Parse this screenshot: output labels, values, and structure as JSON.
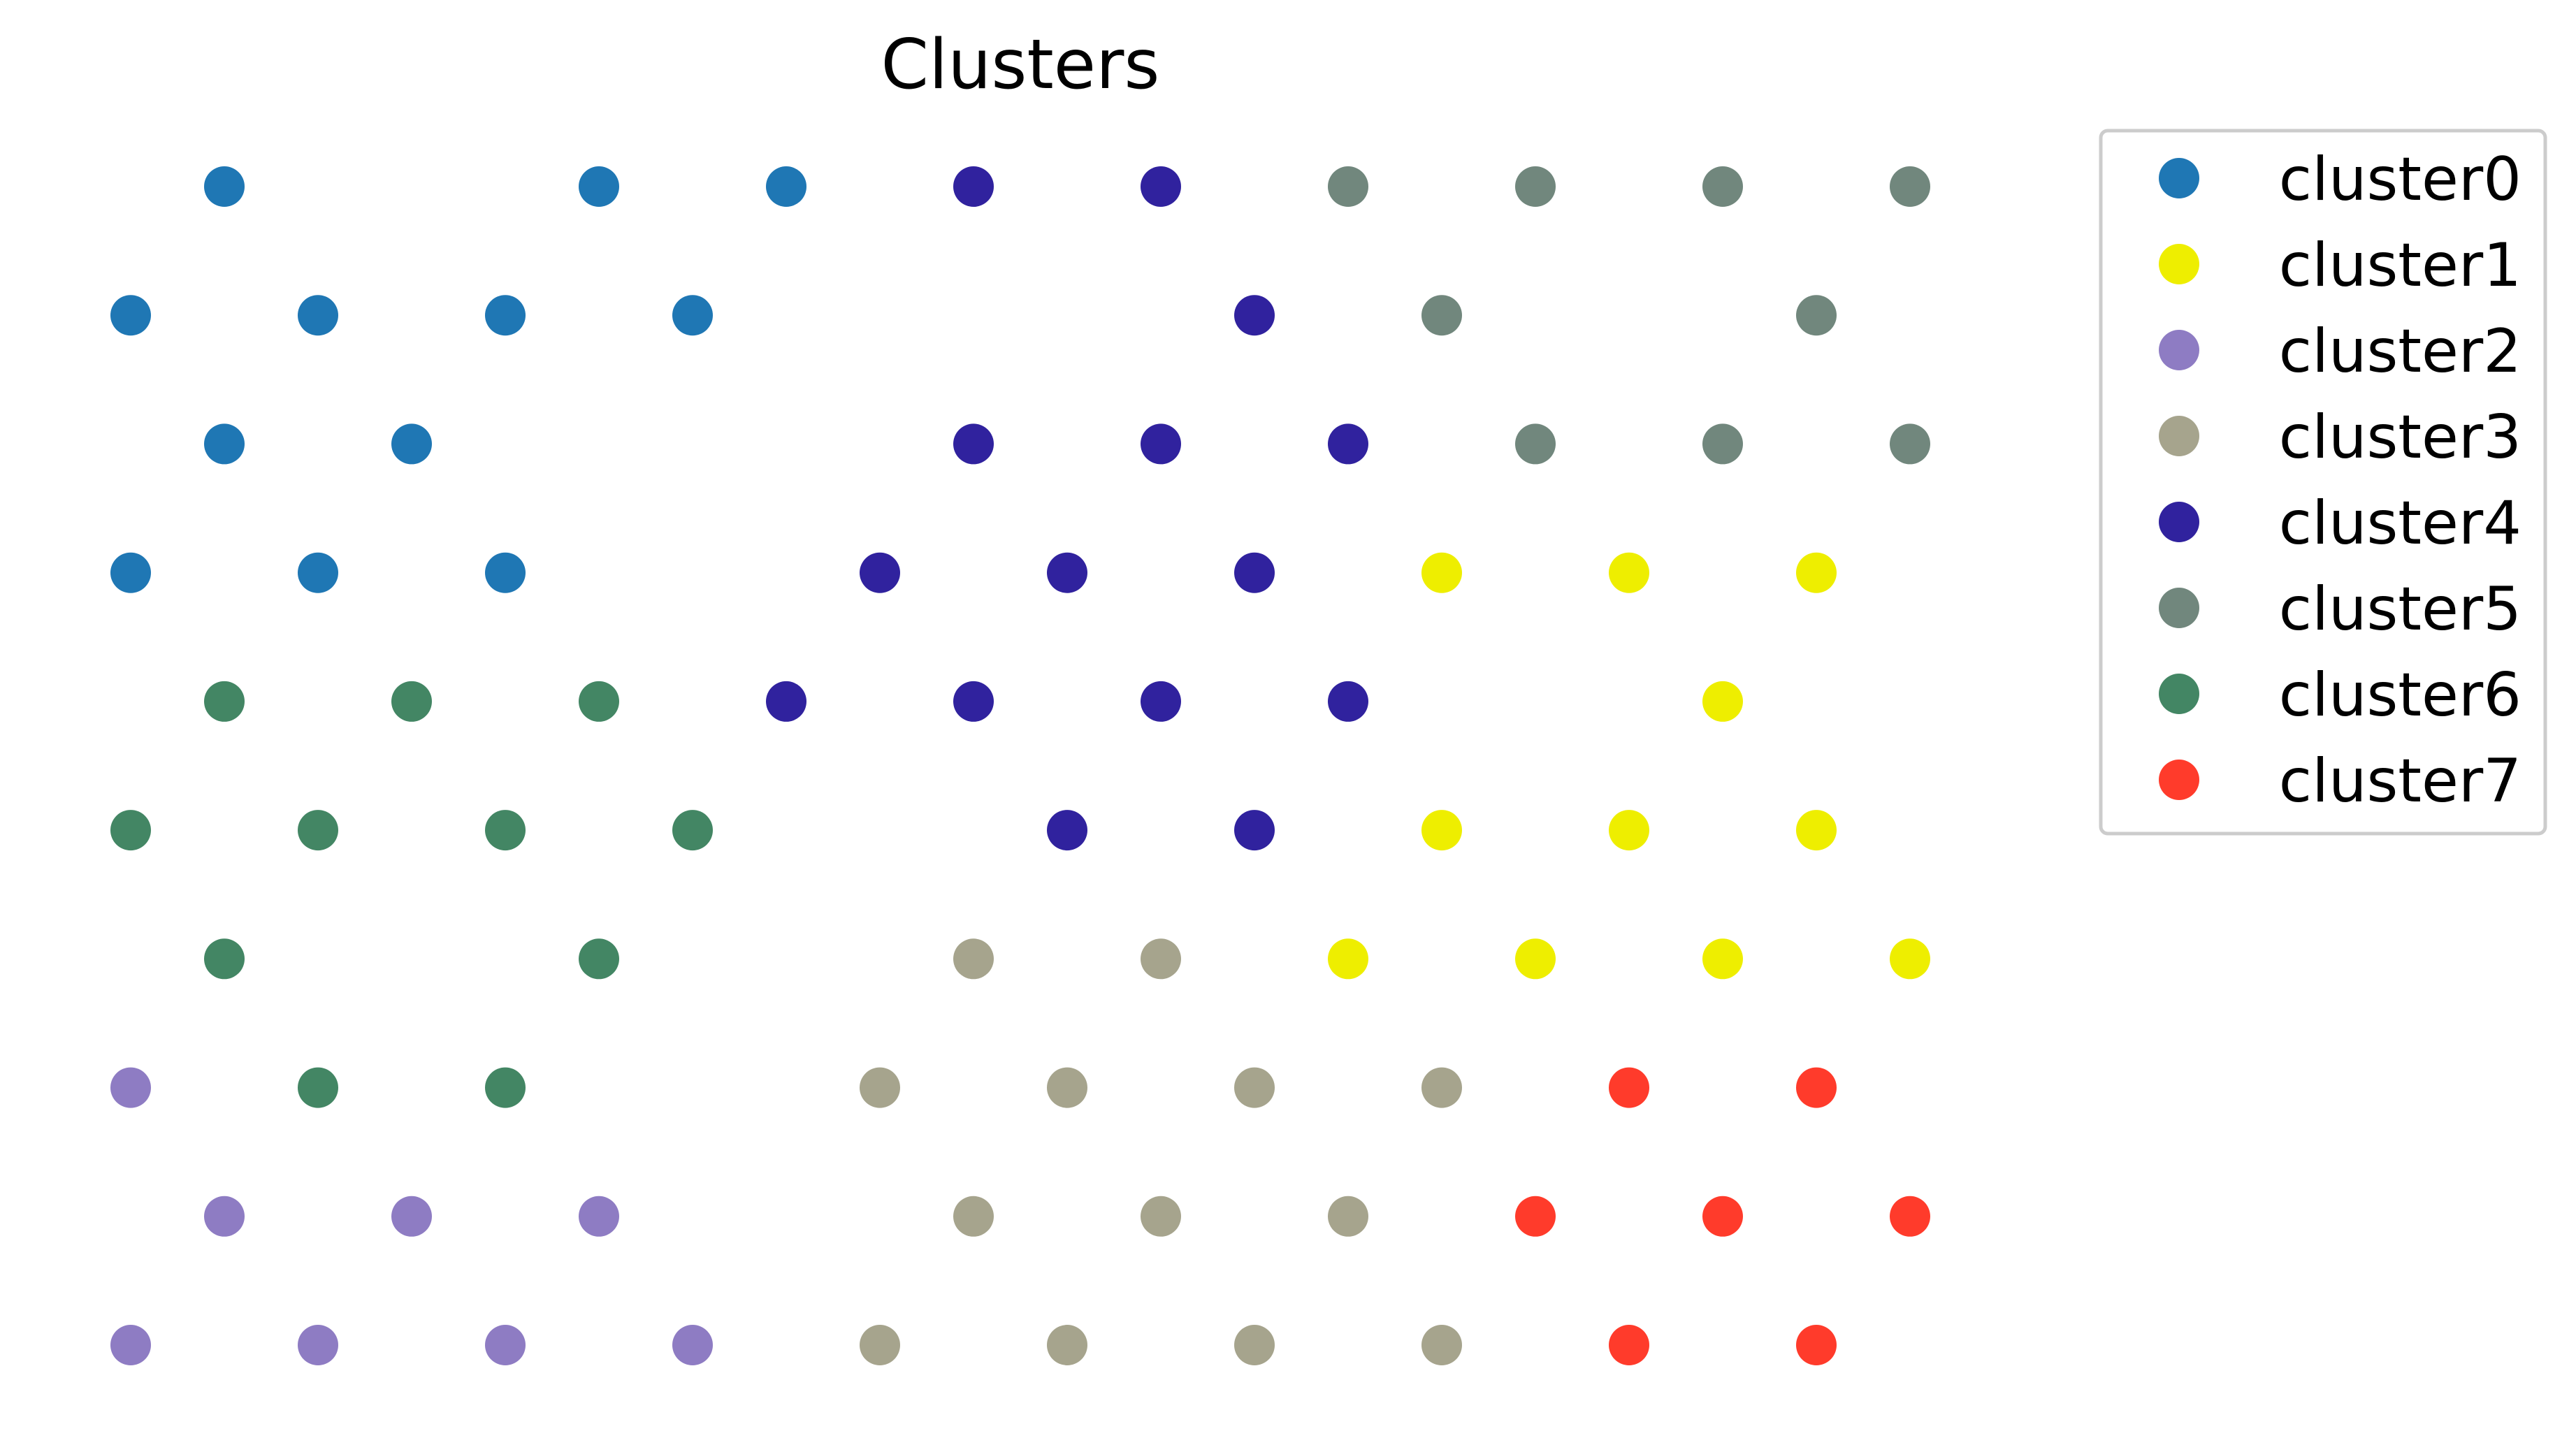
{
  "chart_data": {
    "type": "scatter",
    "title": "Clusters",
    "xlabel": "",
    "ylabel": "",
    "axes_visible": false,
    "grid": false,
    "xlim": [
      -0.5,
      19.5
    ],
    "ylim": [
      -0.6,
      9.8
    ],
    "legend": {
      "placement": "outside-top-right"
    },
    "series": [
      {
        "name": "cluster0",
        "color": "#1f77b4",
        "points": [
          [
            1,
            9
          ],
          [
            5,
            9
          ],
          [
            7,
            9
          ],
          [
            0,
            8
          ],
          [
            2,
            8
          ],
          [
            4,
            8
          ],
          [
            6,
            8
          ],
          [
            1,
            7
          ],
          [
            3,
            7
          ],
          [
            0,
            6
          ],
          [
            2,
            6
          ],
          [
            4,
            6
          ]
        ]
      },
      {
        "name": "cluster1",
        "color": "#eeee00",
        "points": [
          [
            14,
            6
          ],
          [
            16,
            6
          ],
          [
            18,
            6
          ],
          [
            17,
            5
          ],
          [
            14,
            4
          ],
          [
            16,
            4
          ],
          [
            18,
            4
          ],
          [
            13,
            3
          ],
          [
            15,
            3
          ],
          [
            17,
            3
          ],
          [
            19,
            3
          ]
        ]
      },
      {
        "name": "cluster2",
        "color": "#8e7cc3",
        "points": [
          [
            0,
            2
          ],
          [
            1,
            1
          ],
          [
            3,
            1
          ],
          [
            5,
            1
          ],
          [
            0,
            0
          ],
          [
            2,
            0
          ],
          [
            4,
            0
          ],
          [
            6,
            0
          ]
        ]
      },
      {
        "name": "cluster3",
        "color": "#a6a48d",
        "points": [
          [
            9,
            3
          ],
          [
            11,
            3
          ],
          [
            8,
            2
          ],
          [
            10,
            2
          ],
          [
            12,
            2
          ],
          [
            14,
            2
          ],
          [
            9,
            1
          ],
          [
            11,
            1
          ],
          [
            13,
            1
          ],
          [
            8,
            0
          ],
          [
            10,
            0
          ],
          [
            12,
            0
          ],
          [
            14,
            0
          ]
        ]
      },
      {
        "name": "cluster4",
        "color": "#30229e",
        "points": [
          [
            9,
            9
          ],
          [
            11,
            9
          ],
          [
            12,
            8
          ],
          [
            9,
            7
          ],
          [
            11,
            7
          ],
          [
            13,
            7
          ],
          [
            8,
            6
          ],
          [
            10,
            6
          ],
          [
            12,
            6
          ],
          [
            7,
            5
          ],
          [
            9,
            5
          ],
          [
            11,
            5
          ],
          [
            13,
            5
          ],
          [
            10,
            4
          ],
          [
            12,
            4
          ]
        ]
      },
      {
        "name": "cluster5",
        "color": "#71877d",
        "points": [
          [
            13,
            9
          ],
          [
            15,
            9
          ],
          [
            17,
            9
          ],
          [
            19,
            9
          ],
          [
            14,
            8
          ],
          [
            18,
            8
          ],
          [
            15,
            7
          ],
          [
            17,
            7
          ],
          [
            19,
            7
          ]
        ]
      },
      {
        "name": "cluster6",
        "color": "#438664",
        "points": [
          [
            1,
            5
          ],
          [
            3,
            5
          ],
          [
            5,
            5
          ],
          [
            0,
            4
          ],
          [
            2,
            4
          ],
          [
            4,
            4
          ],
          [
            6,
            4
          ],
          [
            1,
            3
          ],
          [
            5,
            3
          ],
          [
            2,
            2
          ],
          [
            4,
            2
          ]
        ]
      },
      {
        "name": "cluster7",
        "color": "#ff3b2b",
        "points": [
          [
            16,
            2
          ],
          [
            18,
            2
          ],
          [
            15,
            1
          ],
          [
            17,
            1
          ],
          [
            19,
            1
          ],
          [
            16,
            0
          ],
          [
            18,
            0
          ]
        ]
      }
    ]
  }
}
